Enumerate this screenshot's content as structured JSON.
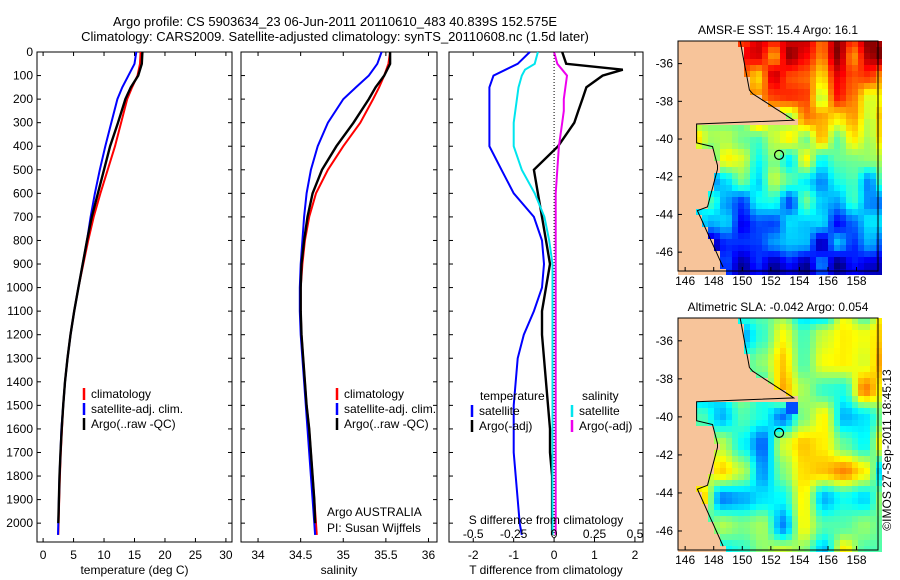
{
  "header": {
    "line1": "Argo profile: CS 5903634_23 06-Jun-2011 20110610_483 40.839S 152.575E",
    "line2": "Climatology: CARS2009. Satellite-adjusted climatology: synTS_20110608.nc (1.5d later)"
  },
  "colors": {
    "climatology": "#ff0000",
    "satellite": "#0000ff",
    "argo": "#000000",
    "sal_satellite": "#00e5ee",
    "sal_argo": "#ee00ee",
    "land": "#f7c49a"
  },
  "chart_data": [
    {
      "type": "line",
      "title": "",
      "xlabel": "temperature (deg C)",
      "ylabel": "",
      "xlim": [
        -1,
        31
      ],
      "ylim": [
        2080,
        0
      ],
      "xticks": [
        "0",
        "5",
        "10",
        "15",
        "20",
        "25",
        "30"
      ],
      "yticks": [
        "0",
        "100",
        "200",
        "300",
        "400",
        "500",
        "600",
        "700",
        "800",
        "900",
        "1000",
        "1100",
        "1200",
        "1300",
        "1400",
        "1500",
        "1600",
        "1700",
        "1800",
        "1900",
        "2000"
      ],
      "depth": [
        0,
        50,
        100,
        150,
        200,
        300,
        400,
        500,
        600,
        700,
        800,
        900,
        1000,
        1100,
        1200,
        1300,
        1400,
        1500,
        1600,
        1700,
        1800,
        1900,
        2000,
        2050
      ],
      "legend": [
        "climatology",
        "satellite-adj. clim.",
        "Argo(..raw -QC)"
      ],
      "series": [
        {
          "name": "climatology",
          "color": "red",
          "values": [
            16.0,
            15.9,
            15.5,
            14.6,
            13.8,
            12.8,
            11.8,
            10.6,
            9.4,
            8.3,
            7.4,
            6.6,
            5.8,
            5.1,
            4.5,
            4.0,
            3.6,
            3.3,
            3.1,
            2.9,
            2.75,
            2.65,
            2.55,
            2.5
          ]
        },
        {
          "name": "satellite-adj. clim.",
          "color": "blue",
          "values": [
            15.3,
            15.0,
            14.0,
            13.0,
            12.2,
            11.2,
            10.2,
            9.3,
            8.5,
            7.8,
            7.2,
            6.5,
            5.8,
            5.1,
            4.5,
            4.0,
            3.6,
            3.3,
            3.0,
            2.85,
            2.7,
            2.6,
            2.5,
            2.45
          ]
        },
        {
          "name": "Argo(..raw -QC)",
          "color": "black",
          "values": [
            16.3,
            16.2,
            15.6,
            14.4,
            13.5,
            12.3,
            11.0,
            10.0,
            9.0,
            8.0,
            7.2,
            6.5,
            5.8,
            5.1,
            4.5,
            4.0,
            3.6,
            3.3,
            3.05,
            2.85,
            2.7,
            2.6,
            2.5
          ]
        }
      ]
    },
    {
      "type": "line",
      "title": "",
      "xlabel": "salinity",
      "ylabel": "",
      "xlim": [
        33.8,
        36.1
      ],
      "ylim": [
        2080,
        0
      ],
      "xticks": [
        "34",
        "34.5",
        "35",
        "35.5",
        "36"
      ],
      "depth": [
        0,
        50,
        100,
        150,
        200,
        300,
        400,
        500,
        600,
        700,
        800,
        900,
        1000,
        1100,
        1200,
        1300,
        1400,
        1500,
        1600,
        1700,
        1800,
        1900,
        2000,
        2050
      ],
      "legend": [
        "climatology",
        "satellite-adj. clim.",
        "Argo(..raw -QC)"
      ],
      "annotation": "Argo AUSTRALIA",
      "annotation2": "PI: Susan Wijffels",
      "series": [
        {
          "name": "climatology",
          "color": "red",
          "values": [
            35.55,
            35.53,
            35.48,
            35.42,
            35.35,
            35.2,
            35.0,
            34.82,
            34.68,
            34.6,
            34.55,
            34.52,
            34.5,
            34.5,
            34.51,
            34.53,
            34.55,
            34.57,
            34.6,
            34.62,
            34.64,
            34.66,
            34.68,
            34.69
          ]
        },
        {
          "name": "satellite-adj. clim.",
          "color": "blue",
          "values": [
            35.45,
            35.4,
            35.3,
            35.15,
            35.0,
            34.82,
            34.7,
            34.62,
            34.57,
            34.54,
            34.52,
            34.5,
            34.49,
            34.49,
            34.5,
            34.52,
            34.54,
            34.56,
            34.58,
            34.6,
            34.62,
            34.64,
            34.66,
            34.67
          ]
        },
        {
          "name": "Argo(..raw -QC)",
          "color": "black",
          "values": [
            35.55,
            35.55,
            35.48,
            35.38,
            35.3,
            35.12,
            34.92,
            34.75,
            34.64,
            34.58,
            34.54,
            34.51,
            34.5,
            34.5,
            34.51,
            34.53,
            34.55,
            34.57,
            34.6,
            34.62,
            34.64,
            34.66,
            34.67
          ]
        }
      ]
    },
    {
      "type": "line",
      "title": "",
      "xlabel": "T difference from climatology",
      "xlabel_top": "S difference from climatology",
      "xlim": [
        -2.6,
        2.2
      ],
      "xlim_top": [
        -0.65,
        0.55
      ],
      "ylim": [
        2080,
        0
      ],
      "xticks": [
        "-2",
        "-1",
        "0",
        "1",
        "2"
      ],
      "xticks_top": [
        "-0.5",
        "-0.25",
        "0",
        "0.25",
        "0.5"
      ],
      "depth": [
        0,
        50,
        75,
        100,
        150,
        200,
        250,
        300,
        400,
        500,
        600,
        700,
        800,
        900,
        1000,
        1100,
        1200,
        1300,
        1400,
        1500,
        1600,
        1700,
        1800,
        1900,
        2000,
        2050
      ],
      "legend_left_title": "temperature",
      "legend_right_title": "salinity",
      "legend": [
        "satellite",
        "Argo(-adj)",
        "satellite",
        "Argo(-adj)"
      ],
      "series": [
        {
          "name": "T satellite",
          "color": "blue",
          "values": [
            -0.6,
            -0.9,
            -1.2,
            -1.5,
            -1.6,
            -1.6,
            -1.6,
            -1.6,
            -1.6,
            -1.3,
            -1.0,
            -0.5,
            -0.3,
            -0.25,
            -0.3,
            -0.5,
            -0.75,
            -0.9,
            -0.95,
            -1.0,
            -1.0,
            -1.0,
            -0.95,
            -0.9,
            -0.85,
            -0.8
          ]
        },
        {
          "name": "T Argo(-adj)",
          "color": "black",
          "values": [
            0.2,
            0.3,
            1.7,
            1.2,
            0.8,
            0.7,
            0.6,
            0.5,
            0.1,
            -0.5,
            -0.4,
            -0.3,
            -0.2,
            -0.1,
            -0.2,
            -0.3,
            -0.3,
            -0.25,
            -0.2,
            -0.15,
            -0.1,
            -0.1,
            -0.05,
            -0.05,
            -0.05,
            -0.05
          ]
        },
        {
          "name": "S satellite",
          "color": "cyan",
          "values": [
            -0.1,
            -0.12,
            -0.18,
            -0.2,
            -0.22,
            -0.23,
            -0.24,
            -0.25,
            -0.25,
            -0.2,
            -0.12,
            -0.06,
            -0.03,
            -0.01,
            -0.01,
            -0.01,
            -0.01,
            -0.01,
            -0.01,
            -0.01,
            -0.01,
            -0.01,
            -0.01,
            -0.01,
            -0.01,
            -0.01
          ]
        },
        {
          "name": "S Argo(-adj)",
          "color": "magenta",
          "values": [
            0.0,
            0.02,
            0.05,
            0.08,
            0.07,
            0.06,
            0.06,
            0.05,
            0.03,
            0.02,
            0.01,
            0.01,
            0.01,
            0.01,
            0.01,
            0.01,
            0.01,
            0.01,
            0.01,
            0.01,
            0.01,
            0.01,
            0.01,
            0.01,
            0.01,
            0.01
          ]
        }
      ]
    },
    {
      "type": "heatmap",
      "title": "AMSR-E SST: 15.4 Argo: 16.1",
      "xticks": [
        "146",
        "148",
        "150",
        "152",
        "154",
        "156",
        "158"
      ],
      "yticks": [
        "-36",
        "-38",
        "-40",
        "-42",
        "-44",
        "-46"
      ],
      "xlim": [
        145.5,
        159.5
      ],
      "ylim": [
        -47,
        -34.8
      ],
      "float_position": {
        "lon": 152.575,
        "lat": -40.839
      }
    },
    {
      "type": "heatmap",
      "title": "Altimetric SLA: -0.042 Argo: 0.054",
      "xticks": [
        "146",
        "148",
        "150",
        "152",
        "154",
        "156",
        "158"
      ],
      "yticks": [
        "-36",
        "-38",
        "-40",
        "-42",
        "-44",
        "-46"
      ],
      "xlim": [
        145.5,
        159.5
      ],
      "ylim": [
        -47,
        -34.8
      ],
      "float_position": {
        "lon": 152.575,
        "lat": -40.839
      }
    }
  ],
  "footer": {
    "credit": "©IMOS 27-Sep-2011 18:45:13"
  }
}
